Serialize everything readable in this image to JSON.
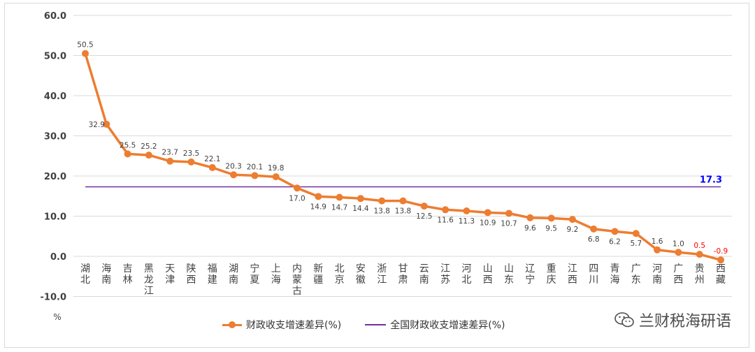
{
  "chart_data": {
    "type": "line",
    "categories": [
      "湖北",
      "海南",
      "吉林",
      "黑龙江",
      "天津",
      "陕西",
      "福建",
      "湖南",
      "宁夏",
      "上海",
      "内蒙古",
      "新疆",
      "北京",
      "安徽",
      "浙江",
      "甘肃",
      "云南",
      "江苏",
      "河北",
      "山西",
      "山东",
      "辽宁",
      "重庆",
      "江西",
      "四川",
      "青海",
      "广东",
      "河南",
      "广西",
      "贵州",
      "西藏"
    ],
    "series": [
      {
        "name": "财政收支增速差异(%)",
        "values": [
          50.5,
          32.9,
          25.5,
          25.2,
          23.7,
          23.5,
          22.1,
          20.3,
          20.1,
          19.8,
          17.0,
          14.9,
          14.7,
          14.4,
          13.8,
          13.8,
          12.5,
          11.6,
          11.3,
          10.9,
          10.7,
          9.6,
          9.5,
          9.2,
          6.8,
          6.2,
          5.7,
          1.6,
          1.0,
          0.5,
          -0.9
        ],
        "color": "#ED7D31"
      },
      {
        "name": "全国财政收支增速差异(%)",
        "value": 17.3,
        "color": "#7030A0",
        "label_color": "#0000FF"
      }
    ],
    "y_ticks": [
      "60.0",
      "50.0",
      "40.0",
      "30.0",
      "20.0",
      "10.0",
      "0.0",
      "-10.0"
    ],
    "ylim": [
      -10,
      60
    ],
    "ylabel": "%",
    "grid": "horizontal",
    "legend_position": "bottom",
    "highlight_label_color": "#FF0000",
    "highlight_categories": [
      "贵州",
      "西藏"
    ]
  },
  "watermark": {
    "text": "兰财税海研语",
    "icon": "wechat-icon"
  }
}
